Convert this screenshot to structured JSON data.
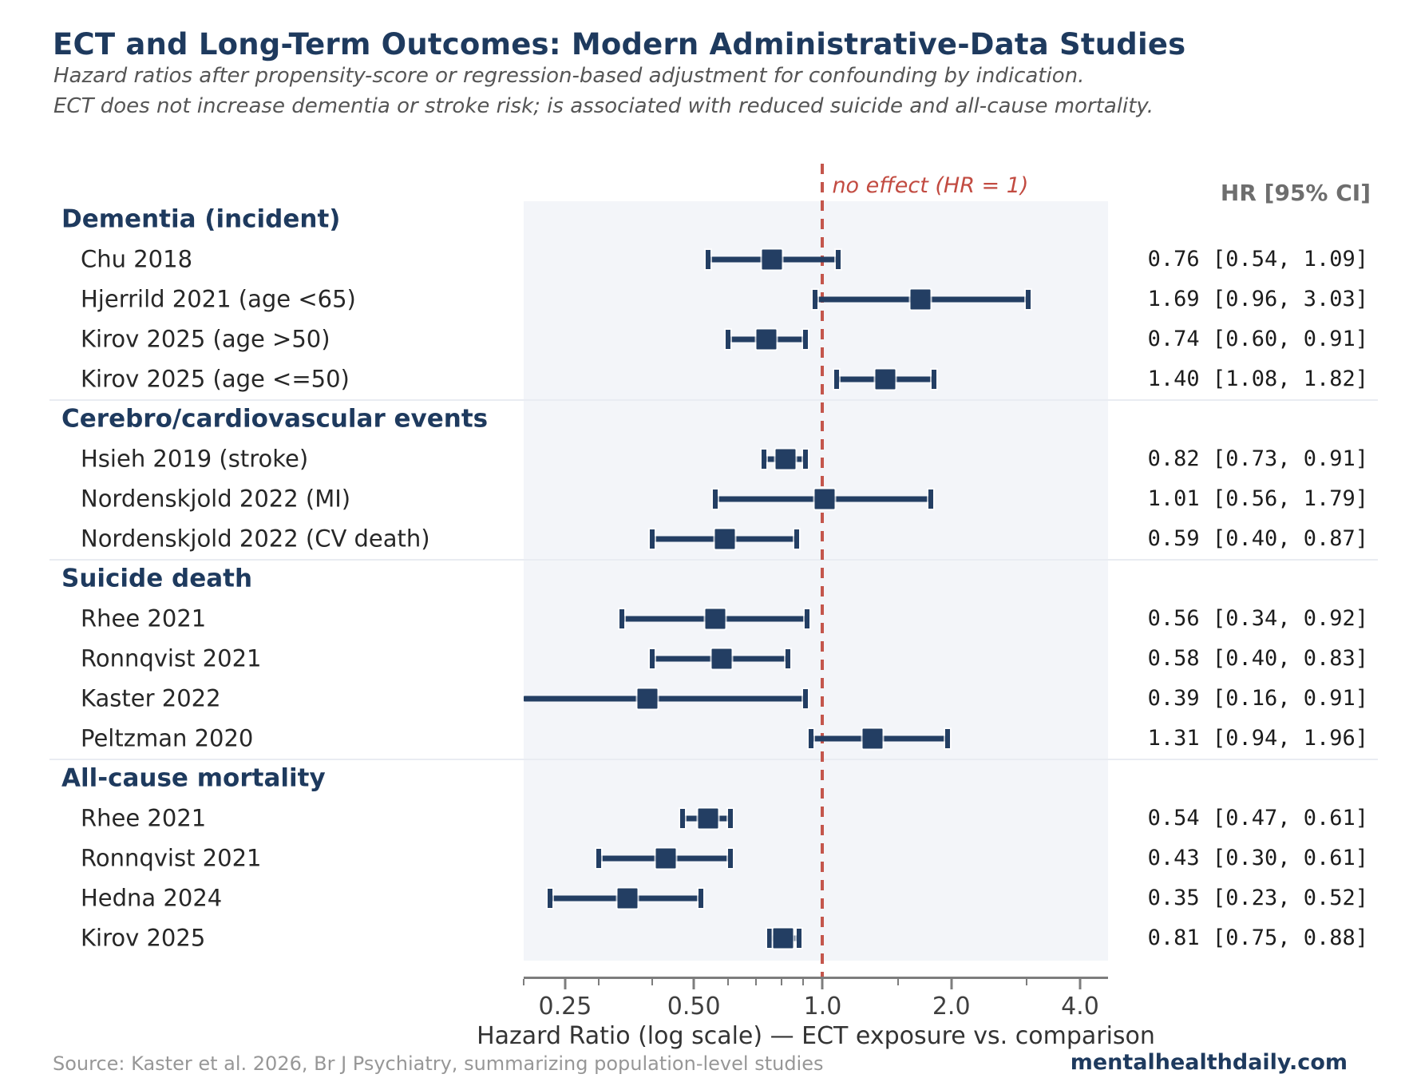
{
  "title": "ECT and Long-Term Outcomes: Modern Administrative-Data Studies",
  "subtitle1": "Hazard ratios after propensity-score or regression-based adjustment for confounding by indication.",
  "subtitle2": "ECT does not increase dementia or stroke risk; is associated with reduced suicide and all-cause mortality.",
  "annotation": "no effect (HR = 1)",
  "hr_header": "HR [95% CI]",
  "xlabel": "Hazard Ratio (log scale) — ECT exposure vs. comparison",
  "footer": {
    "source": "Source: Kaster et al. 2026, Br J Psychiatry, summarizing population-level studies",
    "site": "mentalhealthdaily.com"
  },
  "colors": {
    "navy": "#1e3a5e",
    "marker_navy": "#233e63",
    "red_dash": "#c4564c",
    "red_text": "#c24b41",
    "panel_bg": "#f3f5f9"
  },
  "chart_data": {
    "type": "forest",
    "x_scale": "log",
    "xlim": [
      0.2,
      4.65
    ],
    "x_ticks": [
      0.25,
      0.5,
      1.0,
      2.0,
      4.0
    ],
    "x_tick_labels": [
      "0.25",
      "0.50",
      "1.0",
      "2.0",
      "4.0"
    ],
    "x_minor_ticks": [
      0.2,
      0.3,
      0.4,
      0.6,
      0.7,
      0.8,
      0.9,
      1.5,
      3.0
    ],
    "reference_line": 1.0,
    "grid": false,
    "groups": [
      {
        "label": "Dementia (incident)",
        "studies": [
          {
            "label": "Chu 2018",
            "hr": 0.76,
            "lo": 0.54,
            "hi": 1.09,
            "ci_text": "0.76 [0.54, 1.09]"
          },
          {
            "label": "Hjerrild 2021 (age <65)",
            "hr": 1.69,
            "lo": 0.96,
            "hi": 3.03,
            "ci_text": "1.69 [0.96, 3.03]"
          },
          {
            "label": "Kirov 2025 (age >50)",
            "hr": 0.74,
            "lo": 0.6,
            "hi": 0.91,
            "ci_text": "0.74 [0.60, 0.91]"
          },
          {
            "label": "Kirov 2025 (age <=50)",
            "hr": 1.4,
            "lo": 1.08,
            "hi": 1.82,
            "ci_text": "1.40 [1.08, 1.82]"
          }
        ]
      },
      {
        "label": "Cerebro/cardiovascular events",
        "studies": [
          {
            "label": "Hsieh 2019 (stroke)",
            "hr": 0.82,
            "lo": 0.73,
            "hi": 0.91,
            "ci_text": "0.82 [0.73, 0.91]"
          },
          {
            "label": "Nordenskjold 2022 (MI)",
            "hr": 1.01,
            "lo": 0.56,
            "hi": 1.79,
            "ci_text": "1.01 [0.56, 1.79]"
          },
          {
            "label": "Nordenskjold 2022 (CV death)",
            "hr": 0.59,
            "lo": 0.4,
            "hi": 0.87,
            "ci_text": "0.59 [0.40, 0.87]"
          }
        ]
      },
      {
        "label": "Suicide death",
        "studies": [
          {
            "label": "Rhee 2021",
            "hr": 0.56,
            "lo": 0.34,
            "hi": 0.92,
            "ci_text": "0.56 [0.34, 0.92]"
          },
          {
            "label": "Ronnqvist 2021",
            "hr": 0.58,
            "lo": 0.4,
            "hi": 0.83,
            "ci_text": "0.58 [0.40, 0.83]"
          },
          {
            "label": "Kaster 2022",
            "hr": 0.39,
            "lo": 0.16,
            "hi": 0.91,
            "ci_text": "0.39 [0.16, 0.91]"
          },
          {
            "label": "Peltzman 2020",
            "hr": 1.31,
            "lo": 0.94,
            "hi": 1.96,
            "ci_text": "1.31 [0.94, 1.96]"
          }
        ]
      },
      {
        "label": "All-cause mortality",
        "studies": [
          {
            "label": "Rhee 2021",
            "hr": 0.54,
            "lo": 0.47,
            "hi": 0.61,
            "ci_text": "0.54 [0.47, 0.61]"
          },
          {
            "label": "Ronnqvist 2021",
            "hr": 0.43,
            "lo": 0.3,
            "hi": 0.61,
            "ci_text": "0.43 [0.30, 0.61]"
          },
          {
            "label": "Hedna 2024",
            "hr": 0.35,
            "lo": 0.23,
            "hi": 0.52,
            "ci_text": "0.35 [0.23, 0.52]"
          },
          {
            "label": "Kirov 2025",
            "hr": 0.81,
            "lo": 0.75,
            "hi": 0.88,
            "ci_text": "0.81 [0.75, 0.88]"
          }
        ]
      }
    ]
  }
}
